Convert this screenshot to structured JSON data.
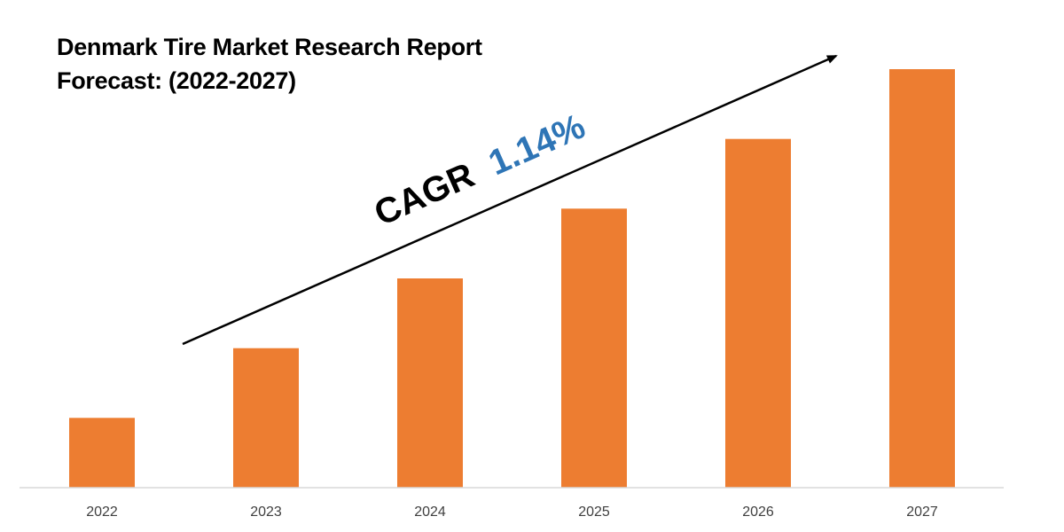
{
  "title": {
    "line1": "Denmark Tire Market Research Report",
    "line2": "Forecast: (2022-2027)"
  },
  "annotation": {
    "prefix": "CAGR",
    "value": "1.14%"
  },
  "colors": {
    "bar": "#ED7D31",
    "annotation_value": "#2E75B6",
    "text": "#000000",
    "tick": "#404040",
    "axis": "#D9D9D9",
    "arrow": "#000000"
  },
  "chart_data": {
    "type": "bar",
    "categories": [
      "2022",
      "2023",
      "2024",
      "2025",
      "2026",
      "2027"
    ],
    "values": [
      1.0,
      2.0,
      3.0,
      4.0,
      5.0,
      6.0
    ],
    "ylim": [
      0,
      6.2
    ],
    "xlabel": "",
    "ylabel": "",
    "grid": false,
    "legend": "none"
  }
}
